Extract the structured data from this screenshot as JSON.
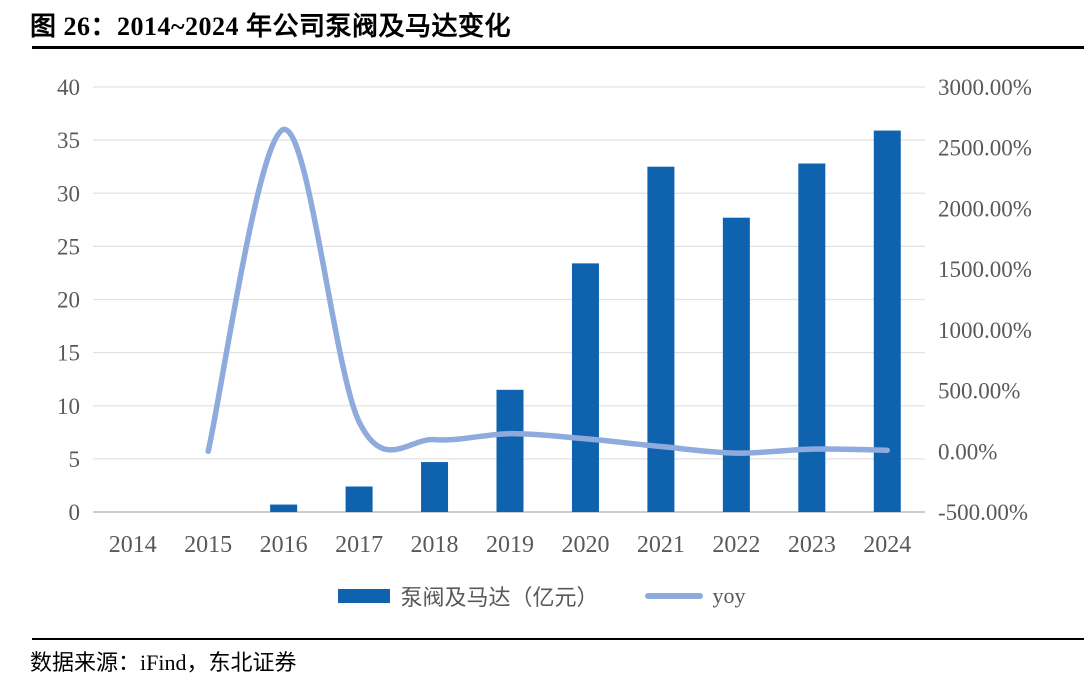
{
  "figure": {
    "title": "图 26：2014~2024 年公司泵阀及马达变化",
    "source": "数据来源：iFind，东北证券"
  },
  "legend": [
    {
      "label": "泵阀及马达（亿元）",
      "swatch": "bar"
    },
    {
      "label": "yoy",
      "swatch": "line"
    }
  ],
  "colors": {
    "bar": "#0F62AD",
    "line": "#8FAADC",
    "grid": "#E2E2E2",
    "baseline": "#C6C6C6",
    "axis_text": "#595959",
    "title_text": "#000000"
  },
  "chart_data": {
    "type": "combo-bar-line",
    "title": "图 26：2014~2024 年公司泵阀及马达变化",
    "categories": [
      "2014",
      "2015",
      "2016",
      "2017",
      "2018",
      "2019",
      "2020",
      "2021",
      "2022",
      "2023",
      "2024"
    ],
    "series": [
      {
        "name": "泵阀及马达（亿元）",
        "type": "bar",
        "axis": "left",
        "unit": "亿元",
        "values": [
          0.03,
          0.03,
          0.7,
          2.4,
          4.7,
          11.5,
          23.4,
          32.5,
          27.7,
          32.8,
          35.9
        ]
      },
      {
        "name": "yoy",
        "type": "line",
        "axis": "right",
        "unit": "%",
        "values": [
          null,
          0,
          2650,
          243,
          96,
          145,
          103,
          39,
          -15,
          18,
          9
        ]
      }
    ],
    "left_axis": {
      "min": 0,
      "max": 40,
      "tick_step": 5,
      "ticks": [
        "0",
        "5",
        "10",
        "15",
        "20",
        "25",
        "30",
        "35",
        "40"
      ]
    },
    "right_axis": {
      "min": -500,
      "max": 3000,
      "tick_step": 500,
      "ticks": [
        "-500.00%",
        "0.00%",
        "500.00%",
        "1000.00%",
        "1500.00%",
        "2000.00%",
        "2500.00%",
        "3000.00%"
      ]
    },
    "grid": true,
    "legend_position": "bottom"
  }
}
